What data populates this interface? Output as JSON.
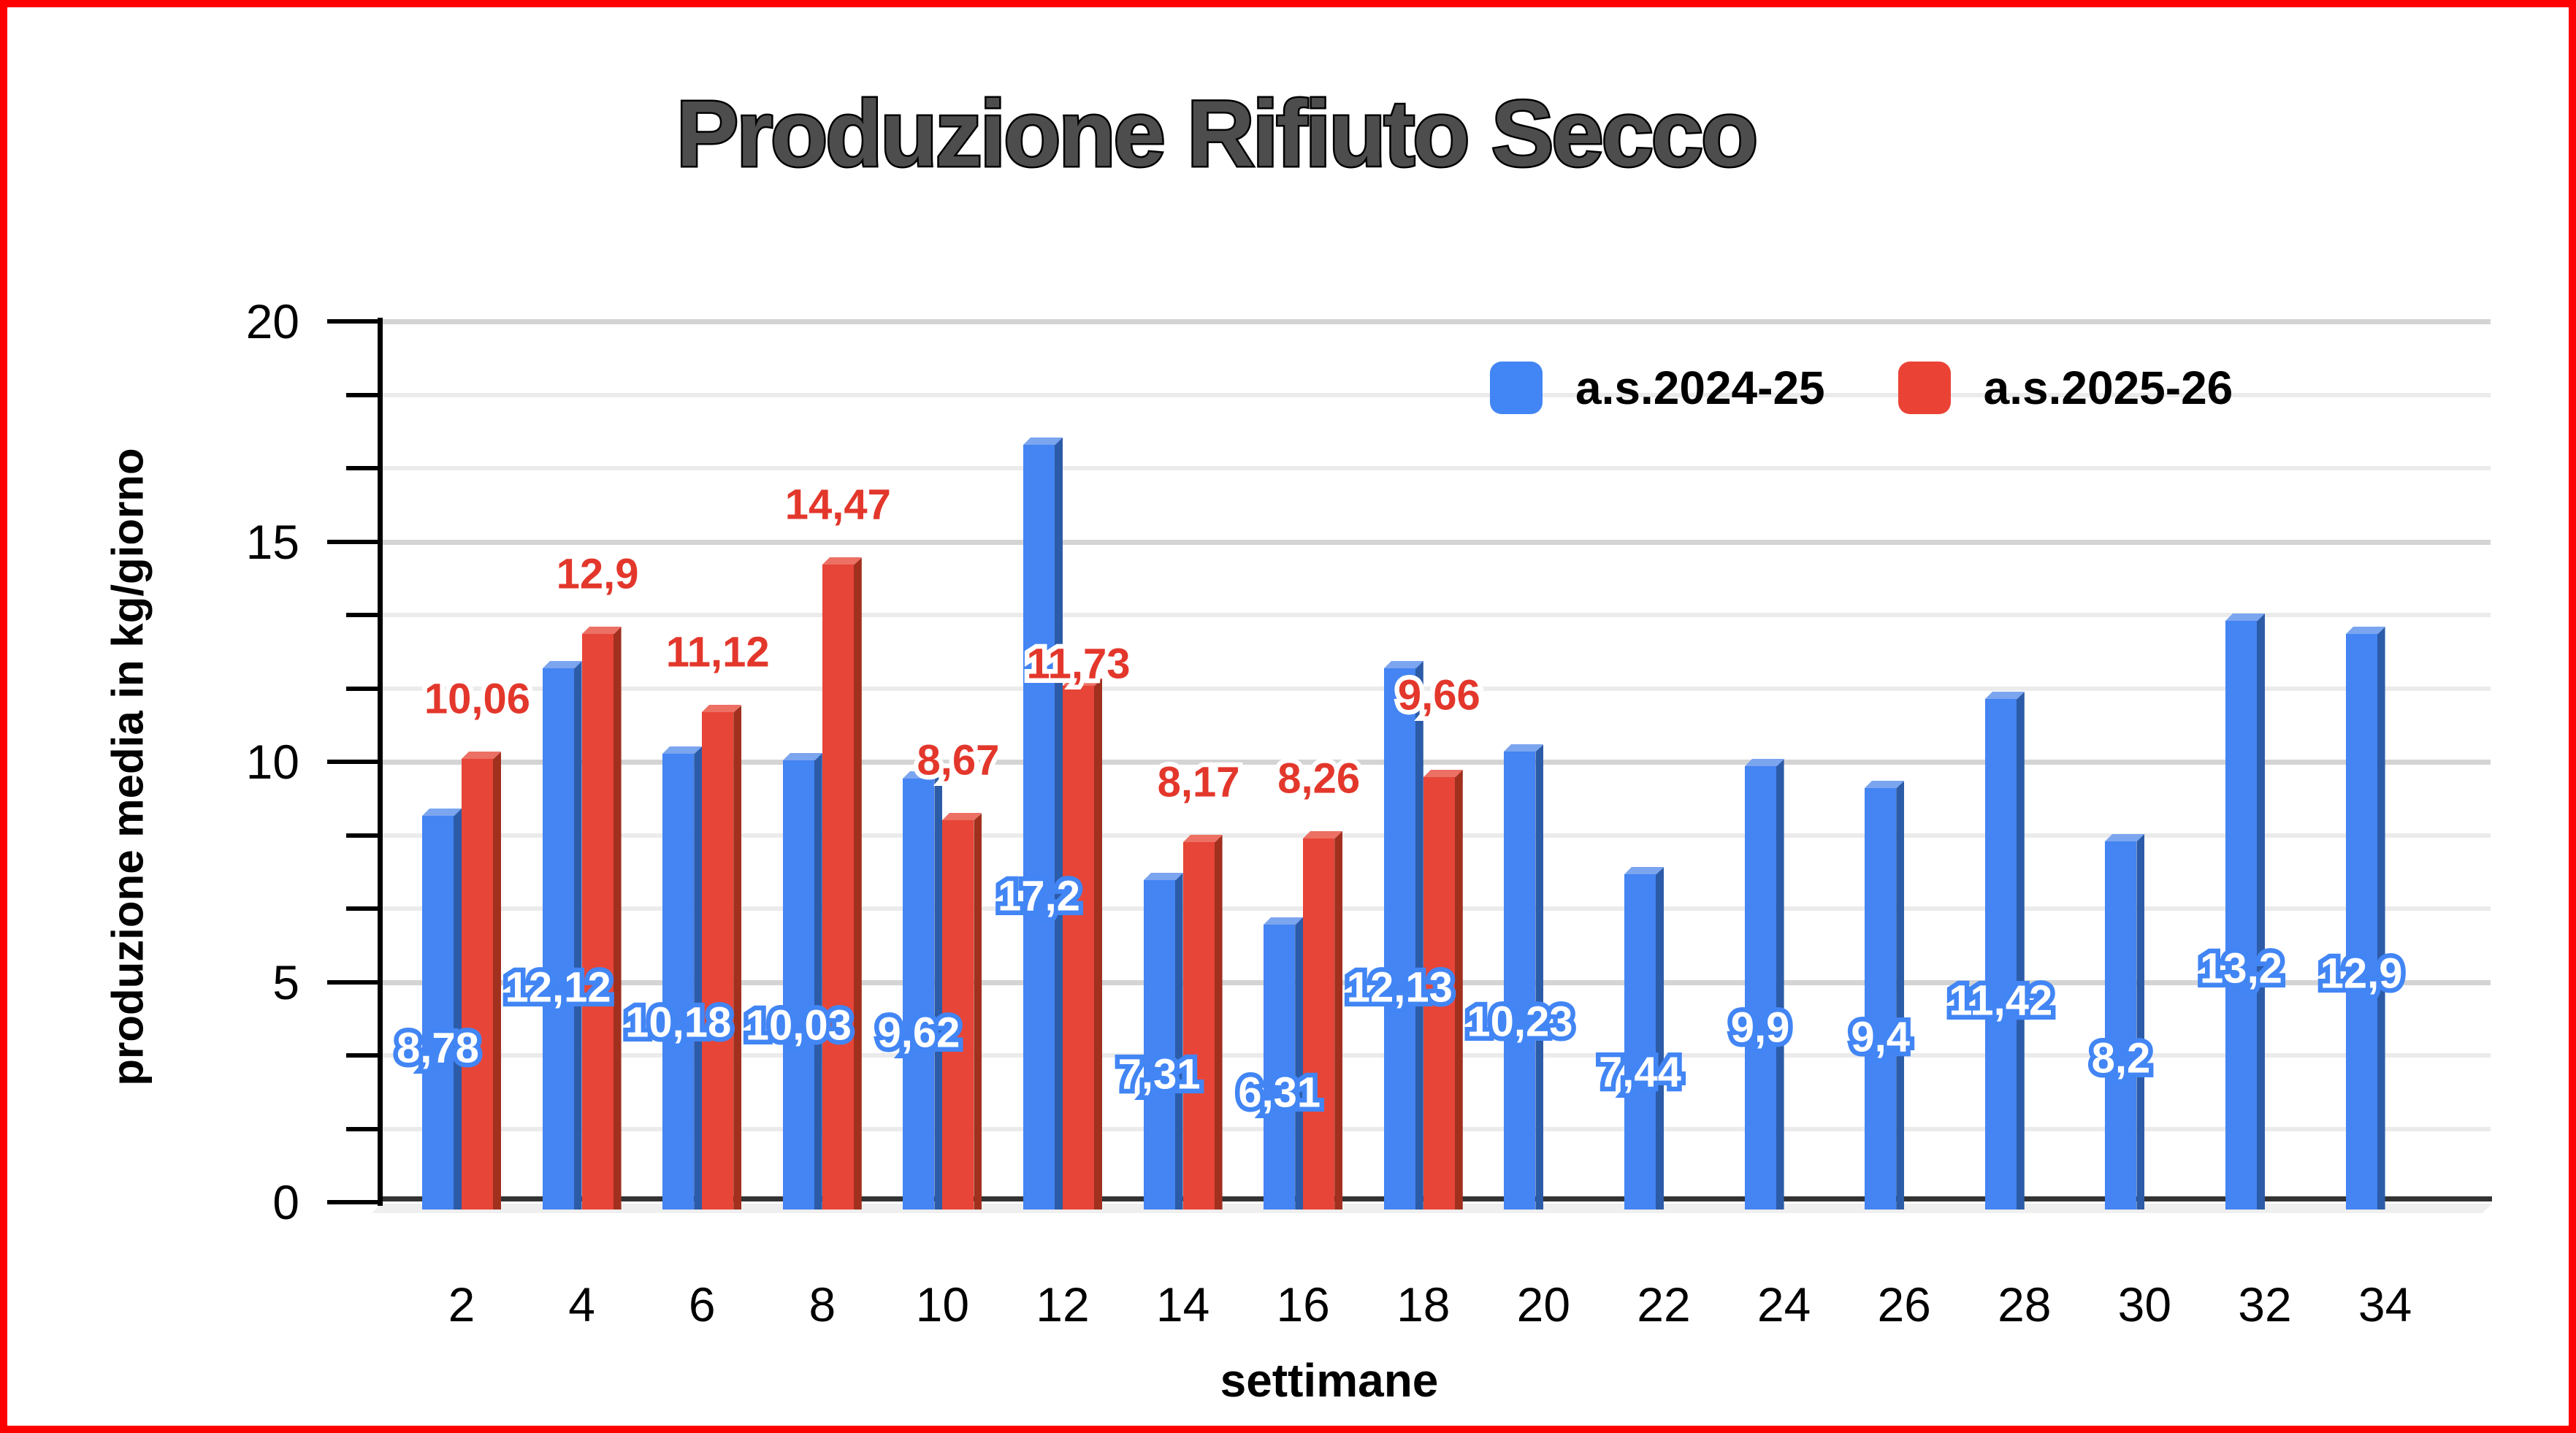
{
  "frame": {
    "border_color": "#fe0000"
  },
  "title": "Produzione Rifiuto Secco",
  "legend": {
    "items": [
      {
        "label": "a.s.2024-25",
        "color": "#4285f4"
      },
      {
        "label": "a.s.2025-26",
        "color": "#ea4335"
      }
    ]
  },
  "axes": {
    "y_title": "produzione media in kg/giorno",
    "x_title": "settimane",
    "y_tick_labels": [
      "0",
      "5",
      "10",
      "15",
      "20"
    ],
    "x_tick_labels": [
      "2",
      "4",
      "6",
      "8",
      "10",
      "12",
      "14",
      "16",
      "18",
      "20",
      "22",
      "24",
      "26",
      "28",
      "30",
      "32",
      "34"
    ]
  },
  "chart_data": {
    "type": "bar",
    "title": "Produzione Rifiuto Secco",
    "xlabel": "settimane",
    "ylabel": "produzione media in kg/giorno",
    "ylim": [
      0,
      20
    ],
    "grid": {
      "major_step": 5,
      "minor_step": 1.6667,
      "minor_per_major": 2
    },
    "legend_position": "top-right-inside",
    "categories": [
      2,
      4,
      6,
      8,
      10,
      12,
      14,
      16,
      18,
      20,
      22,
      24,
      26,
      28,
      30,
      32,
      34
    ],
    "series": [
      {
        "name": "a.s.2024-25",
        "color": "#4285f4",
        "color_front": "#4484f3",
        "color_side": "#2c5ba8",
        "color_top": "#7ca5ef",
        "values": [
          8.78,
          12.12,
          10.18,
          10.03,
          9.62,
          17.2,
          7.31,
          6.31,
          12.13,
          10.23,
          7.44,
          9.9,
          9.4,
          11.42,
          8.2,
          13.2,
          12.9
        ],
        "labels": [
          "8,78",
          "12,12",
          "10,18",
          "10,03",
          "9,62",
          "17,2",
          "7,31",
          "6,31",
          "12,13",
          "10,23",
          "7,44",
          "9,9",
          "9,4",
          "11,42",
          "8,2",
          "13,2",
          "12,9"
        ]
      },
      {
        "name": "a.s.2025-26",
        "color": "#ea4335",
        "color_front": "#e74537",
        "color_side": "#a1301f",
        "color_top": "#ec7064",
        "values": [
          10.06,
          12.9,
          11.12,
          14.47,
          8.67,
          11.73,
          8.17,
          8.26,
          9.66,
          null,
          null,
          null,
          null,
          null,
          null,
          null,
          null
        ],
        "labels": [
          "10,06",
          "12,9",
          "11,12",
          "14,47",
          "8,67",
          "11,73",
          "8,17",
          "8,26",
          "9,66",
          "",
          "",
          "",
          "",
          "",
          "",
          "",
          ""
        ]
      }
    ]
  }
}
